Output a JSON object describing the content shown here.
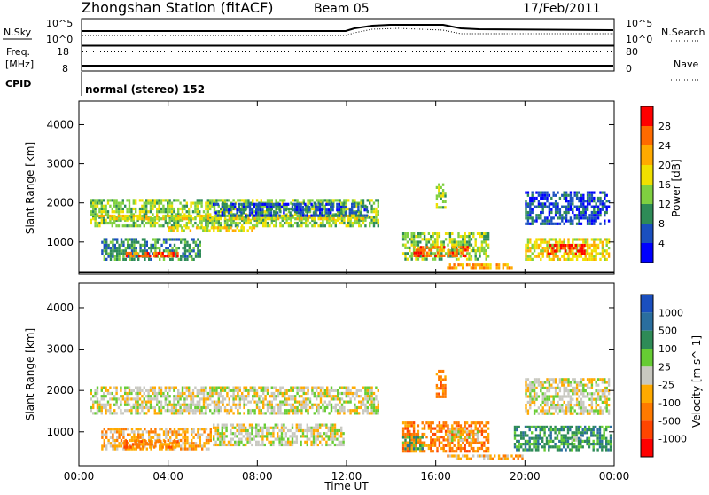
{
  "header": {
    "station": "Zhongshan Station (fitACF)",
    "beam": "Beam 05",
    "date": "17/Feb/2011"
  },
  "strip_labels": {
    "nsky": "N.Sky",
    "nsky_ticks": [
      "10^5",
      "10^0"
    ],
    "nsearch": "N.Search",
    "nsearch_ticks": [
      "10^5",
      "10^0"
    ],
    "freq_top": "Freq.",
    "freq_unit": "[MHz]",
    "freq_ticks": [
      "18",
      "8"
    ],
    "nave": "Nave",
    "nave_ticks": [
      "80",
      "0"
    ],
    "cpid": "CPID",
    "mode": "normal (stereo) 152"
  },
  "chart_data": [
    {
      "type": "heatmap",
      "name_hint": "power-panel",
      "ylabel": "Slant Range [km]",
      "xlabel": "",
      "x_ticks": [
        "00:00",
        "04:00",
        "08:00",
        "12:00",
        "16:00",
        "20:00",
        "00:00"
      ],
      "y_ticks": [
        "1000",
        "2000",
        "3000",
        "4000"
      ],
      "xlim_hours": [
        0,
        24
      ],
      "ylim_km": [
        180,
        4600
      ],
      "colorbar": {
        "label": "Power [dB]",
        "ticks": [
          "28",
          "24",
          "20",
          "16",
          "12",
          "8",
          "4"
        ],
        "colors": [
          "#ff0000",
          "#ff6a00",
          "#ffaa00",
          "#f0e000",
          "#7fd040",
          "#2e8b57",
          "#1a4fbf",
          "#0000ff"
        ]
      },
      "blobs": [
        {
          "t0": 0.5,
          "t1": 13.5,
          "r0": 1350,
          "r1": 2100,
          "level": 4
        },
        {
          "t0": 0.6,
          "t1": 13.0,
          "r0": 1500,
          "r1": 1700,
          "level": 3
        },
        {
          "t0": 1.0,
          "t1": 5.5,
          "r0": 500,
          "r1": 1100,
          "level": 5
        },
        {
          "t0": 2.0,
          "t1": 4.5,
          "r0": 550,
          "r1": 750,
          "level": 1
        },
        {
          "t0": 4.0,
          "t1": 8.0,
          "r0": 1200,
          "r1": 1400,
          "level": 3
        },
        {
          "t0": 14.5,
          "t1": 18.5,
          "r0": 500,
          "r1": 1250,
          "level": 4
        },
        {
          "t0": 15.0,
          "t1": 17.5,
          "r0": 550,
          "r1": 900,
          "level": 1
        },
        {
          "t0": 16.0,
          "t1": 16.5,
          "r0": 1800,
          "r1": 2500,
          "level": 4
        },
        {
          "t0": 16.5,
          "t1": 19.5,
          "r0": 300,
          "r1": 450,
          "level": 2
        },
        {
          "t0": 20.0,
          "t1": 23.9,
          "r0": 500,
          "r1": 1100,
          "level": 3
        },
        {
          "t0": 21.0,
          "t1": 22.8,
          "r0": 600,
          "r1": 950,
          "level": 0
        },
        {
          "t0": 20.0,
          "t1": 23.9,
          "r0": 1400,
          "r1": 2300,
          "level": 6
        },
        {
          "t0": 6.0,
          "t1": 13.0,
          "r0": 1600,
          "r1": 2000,
          "level": 6
        }
      ]
    },
    {
      "type": "heatmap",
      "name_hint": "velocity-panel",
      "ylabel": "Slant Range [km]",
      "xlabel": "Time UT",
      "x_ticks": [
        "00:00",
        "04:00",
        "08:00",
        "12:00",
        "16:00",
        "20:00",
        "00:00"
      ],
      "y_ticks": [
        "1000",
        "2000",
        "3000",
        "4000"
      ],
      "xlim_hours": [
        0,
        24
      ],
      "ylim_km": [
        180,
        4600
      ],
      "colorbar": {
        "label": "Velocity [m s^-1]",
        "ticks": [
          "1000",
          "500",
          "100",
          "25",
          "-25",
          "-100",
          "-500",
          "-1000"
        ],
        "colors": [
          "#1a4fbf",
          "#2a6e9e",
          "#2e8b57",
          "#66cc33",
          "#c8c8c0",
          "#ffaa00",
          "#ff7a00",
          "#ff4500",
          "#ff0000"
        ]
      },
      "blobs": [
        {
          "t0": 0.5,
          "t1": 13.5,
          "r0": 1350,
          "r1": 2100,
          "level": 4
        },
        {
          "t0": 1.0,
          "t1": 6.0,
          "r0": 500,
          "r1": 1100,
          "level": 5
        },
        {
          "t0": 2.0,
          "t1": 4.5,
          "r0": 550,
          "r1": 800,
          "level": 6
        },
        {
          "t0": 6.0,
          "t1": 12.0,
          "r0": 600,
          "r1": 1200,
          "level": 4
        },
        {
          "t0": 14.5,
          "t1": 18.5,
          "r0": 450,
          "r1": 1250,
          "level": 6
        },
        {
          "t0": 16.5,
          "t1": 18.0,
          "r0": 700,
          "r1": 1100,
          "level": 4
        },
        {
          "t0": 14.5,
          "t1": 15.5,
          "r0": 500,
          "r1": 900,
          "level": 2
        },
        {
          "t0": 16.0,
          "t1": 16.5,
          "r0": 1800,
          "r1": 2500,
          "level": 6
        },
        {
          "t0": 16.5,
          "t1": 20.0,
          "r0": 300,
          "r1": 450,
          "level": 5
        },
        {
          "t0": 19.5,
          "t1": 23.9,
          "r0": 500,
          "r1": 1150,
          "level": 2
        },
        {
          "t0": 21.5,
          "t1": 23.0,
          "r0": 700,
          "r1": 900,
          "level": 3
        },
        {
          "t0": 20.0,
          "t1": 23.9,
          "r0": 1400,
          "r1": 2300,
          "level": 4
        }
      ]
    }
  ]
}
